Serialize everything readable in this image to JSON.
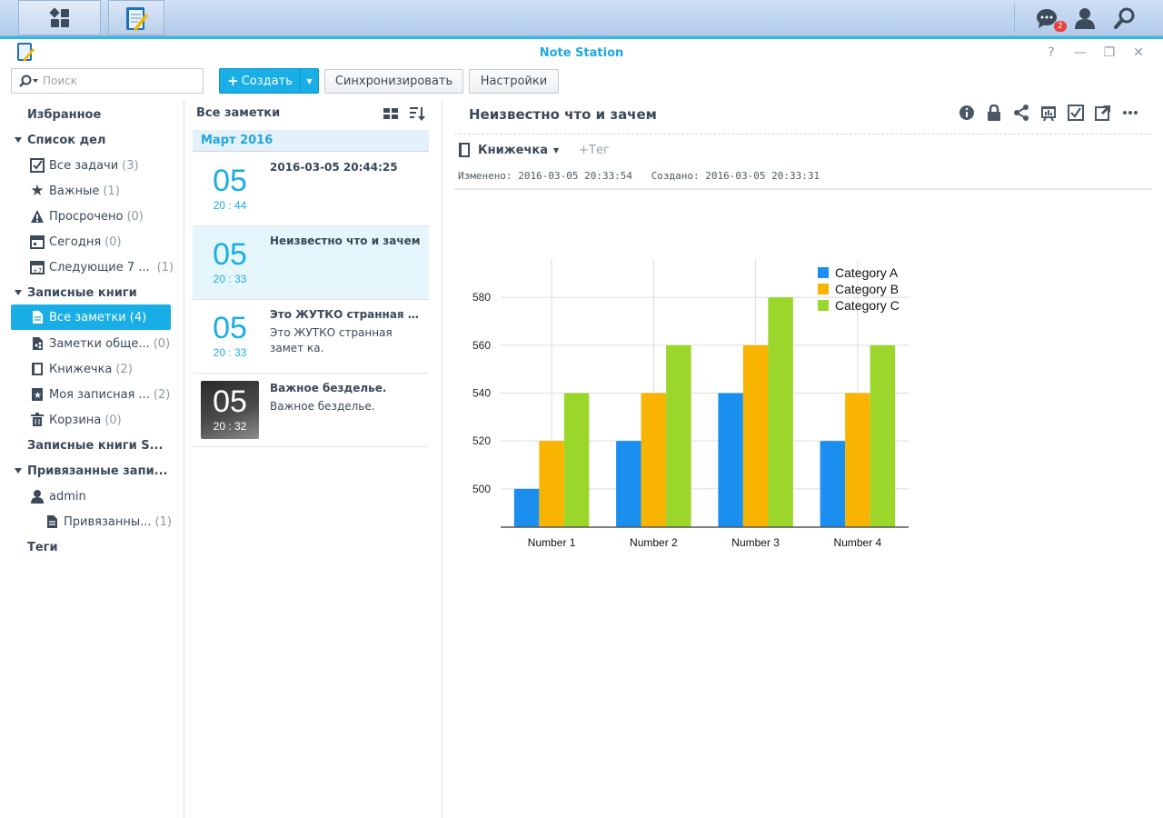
{
  "app": {
    "title": "Note Station",
    "notifications_count": "2"
  },
  "toolbar": {
    "search_placeholder": "Поиск",
    "create_label": "Создать",
    "sync_label": "Синхронизировать",
    "settings_label": "Настройки"
  },
  "sidebar": {
    "favorites": "Избранное",
    "todo_header": "Список дел",
    "todo_items": [
      {
        "label": "Все задачи",
        "count": "(3)",
        "icon": "checkbox-icon"
      },
      {
        "label": "Важные",
        "count": "(1)",
        "icon": "star-icon"
      },
      {
        "label": "Просрочено",
        "count": "(0)",
        "icon": "warning-icon"
      },
      {
        "label": "Сегодня",
        "count": "(0)",
        "icon": "calendar-icon"
      },
      {
        "label": "Следующие 7 ...",
        "count": "(1)",
        "icon": "calendar-week-icon"
      }
    ],
    "notebooks_header": "Записные книги",
    "notebook_items": [
      {
        "label": "Все заметки",
        "count": "(4)",
        "icon": "notes-icon"
      },
      {
        "label": "Заметки обще...",
        "count": "(0)",
        "icon": "shared-notes-icon"
      },
      {
        "label": "Книжечка",
        "count": "(2)",
        "icon": "notebook-icon"
      },
      {
        "label": "Моя записная ...",
        "count": "(2)",
        "icon": "starred-notebook-icon"
      },
      {
        "label": "Корзина",
        "count": "(0)",
        "icon": "trash-icon"
      }
    ],
    "shared_notebooks_header": "Записные книги S...",
    "linked_header": "Привязанные запи...",
    "linked_user": "admin",
    "linked_item": {
      "label": "Привязанны...",
      "count": "(1)"
    },
    "tags": "Теги"
  },
  "note_list": {
    "title": "Все заметки",
    "month": "Март 2016",
    "notes": [
      {
        "day": "05",
        "time": "20 : 44",
        "title": "2016-03-05 20:44:25",
        "snippet": ""
      },
      {
        "day": "05",
        "time": "20 : 33",
        "title": "Неизвестно что и зачем",
        "snippet": ""
      },
      {
        "day": "05",
        "time": "20 : 33",
        "title": "Это ЖУТКО странная з...",
        "snippet": "Это ЖУТКО странная замет ка."
      },
      {
        "day": "05",
        "time": "20 : 32",
        "title": "Важное безделье.",
        "snippet": "Важное безделье."
      }
    ]
  },
  "editor": {
    "title": "Неизвестно что и зачем",
    "notebook": "Книжечка",
    "tag_placeholder": "+Тег",
    "modified": "Изменено: 2016-03-05 20:33:54",
    "created": "Создано: 2016-03-05 20:33:31"
  },
  "colors": {
    "accent": "#19aee6",
    "series_a": "#1a8ff0",
    "series_b": "#f8b400",
    "series_c": "#9bd62b"
  },
  "chart_data": {
    "type": "bar",
    "categories": [
      "Number 1",
      "Number 2",
      "Number 3",
      "Number 4"
    ],
    "series": [
      {
        "name": "Category A",
        "values": [
          500,
          520,
          540,
          520
        ]
      },
      {
        "name": "Category B",
        "values": [
          520,
          540,
          560,
          540
        ]
      },
      {
        "name": "Category C",
        "values": [
          540,
          560,
          580,
          560
        ]
      }
    ],
    "yticks": [
      500,
      520,
      540,
      560,
      580
    ],
    "ylim": [
      484,
      596
    ],
    "legend": "top-right",
    "grid": true
  }
}
